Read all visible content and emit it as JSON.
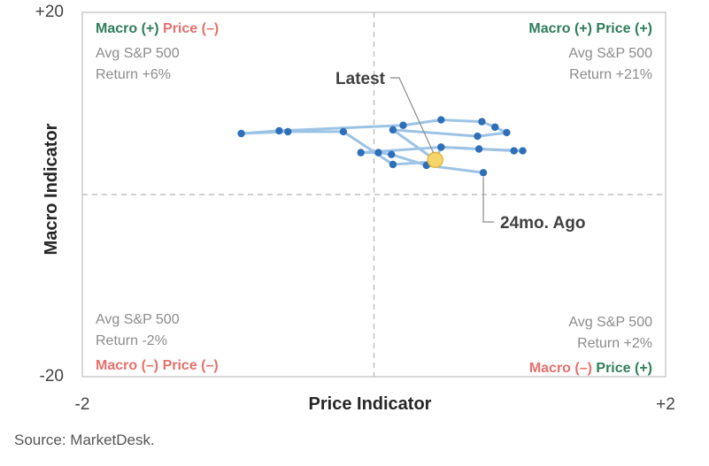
{
  "colors": {
    "positive": "#2e7d5b",
    "negative": "#e8706d",
    "line": "#9cc3e6",
    "marker": "#2e6fb8",
    "latest_fill": "#f6d66b",
    "latest_stroke": "#e7b43c",
    "frame": "#bfbfbf",
    "divider": "#b5b5b5"
  },
  "quadrants": {
    "top_left": {
      "macro": "Macro (+)",
      "price": "Price (–)",
      "line1": "Avg S&P 500",
      "line2": "Return +6%"
    },
    "top_right": {
      "macro": "Macro (+)",
      "price": "Price (+)",
      "line1": "Avg S&P 500",
      "line2": "Return +21%"
    },
    "bottom_left": {
      "macro": "Macro (–)",
      "price": "Price (–)",
      "line1": "Avg S&P 500",
      "line2": "Return -2%"
    },
    "bottom_right": {
      "macro": "Macro (–)",
      "price": "Price (+)",
      "line1": "Avg S&P 500",
      "line2": "Return +2%"
    }
  },
  "source": "Source: MarketDesk.",
  "chart_data": {
    "type": "line",
    "xlabel": "Price Indicator",
    "ylabel": "Macro Indicator",
    "xlim": [
      -2,
      2
    ],
    "ylim": [
      -20,
      20
    ],
    "x_ticks": [
      {
        "value": -2,
        "label": "-2"
      },
      {
        "value": 2,
        "label": "+2"
      }
    ],
    "y_ticks": [
      {
        "value": 20,
        "label": "+20"
      },
      {
        "value": -20,
        "label": "-20"
      }
    ],
    "grid": false,
    "dividers": {
      "x": 0,
      "y": 0
    },
    "annotations": [
      {
        "label": "Latest",
        "index": 23
      },
      {
        "label": "24mo. Ago",
        "index": 0
      }
    ],
    "series": [
      {
        "points": [
          {
            "x": 0.75,
            "y": 2.4
          },
          {
            "x": 0.36,
            "y": 3.2
          },
          {
            "x": 0.12,
            "y": 4.4
          },
          {
            "x": 0.03,
            "y": 4.6
          },
          {
            "x": -0.09,
            "y": 4.6
          },
          {
            "x": 0.46,
            "y": 5.2
          },
          {
            "x": 0.96,
            "y": 4.8
          },
          {
            "x": 1.02,
            "y": 4.8
          },
          {
            "x": 0.72,
            "y": 5.0
          },
          {
            "x": 0.46,
            "y": 5.2
          },
          {
            "x": 0.42,
            "y": 3.6
          },
          {
            "x": 0.13,
            "y": 3.3
          },
          {
            "x": -0.21,
            "y": 6.9
          },
          {
            "x": -0.59,
            "y": 6.9
          },
          {
            "x": -0.91,
            "y": 6.7
          },
          {
            "x": -0.65,
            "y": 7.0
          },
          {
            "x": 0.2,
            "y": 7.6
          },
          {
            "x": 0.46,
            "y": 8.2
          },
          {
            "x": 0.74,
            "y": 8.0
          },
          {
            "x": 0.83,
            "y": 7.4
          },
          {
            "x": 0.91,
            "y": 6.8
          },
          {
            "x": 0.71,
            "y": 6.4
          },
          {
            "x": 0.13,
            "y": 7.1
          },
          {
            "x": 0.42,
            "y": 3.8
          }
        ]
      }
    ]
  }
}
